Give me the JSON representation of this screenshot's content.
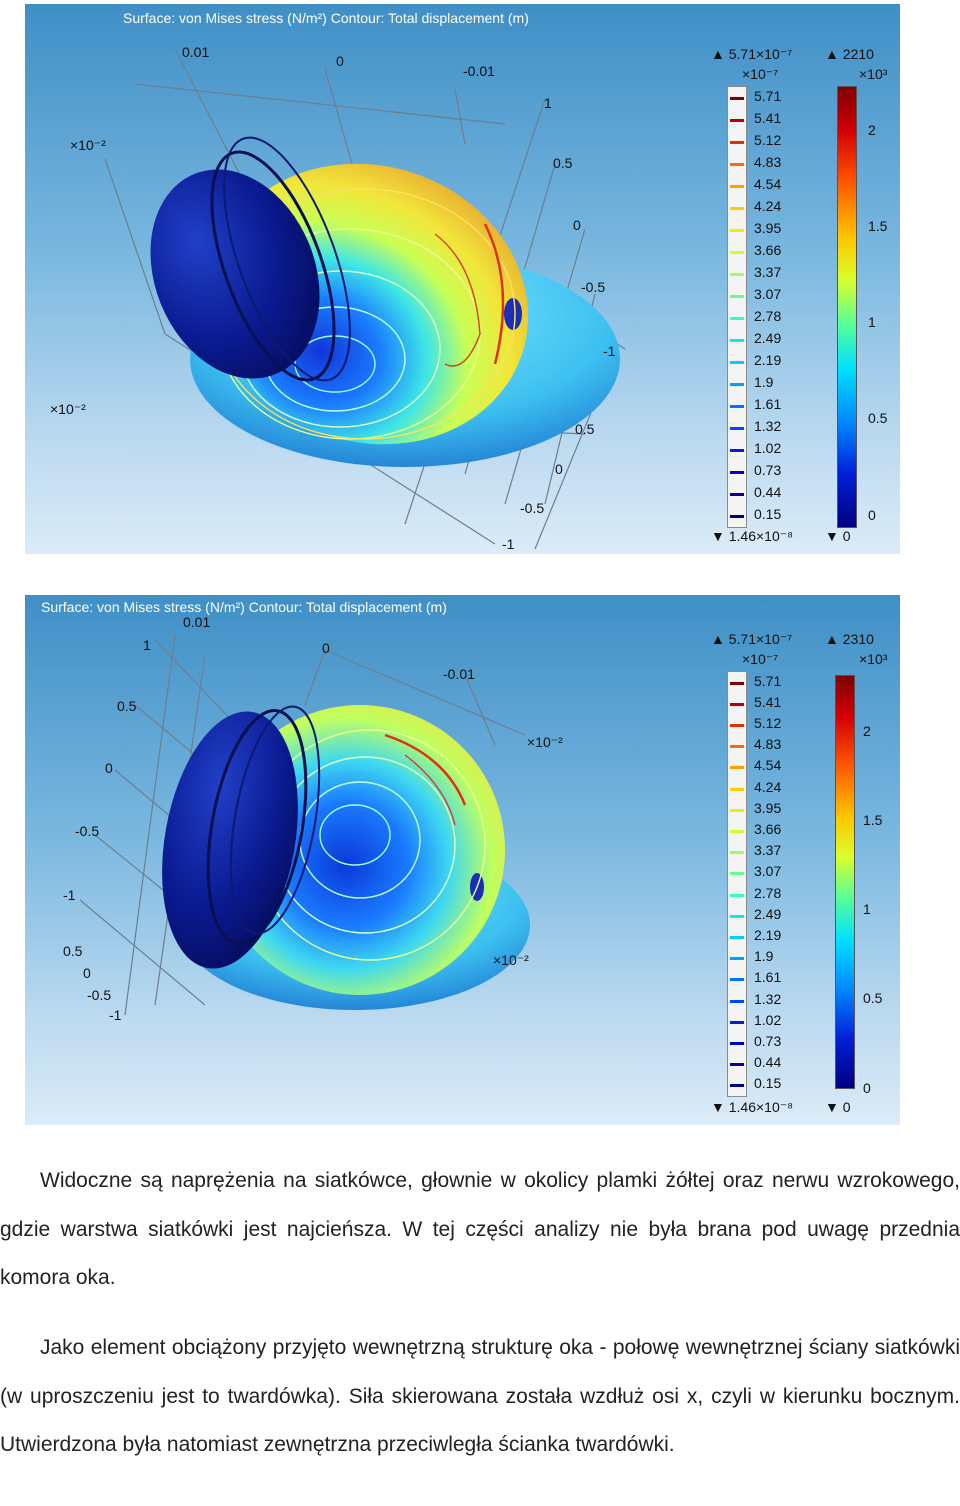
{
  "figures": [
    {
      "title": "Surface: von Mises stress (N/m²)  Contour: Total displacement (m)",
      "axis_labels": [
        "0.01",
        "0",
        "-0.01",
        "1",
        "0.5",
        "0",
        "-0.5",
        "-1",
        "0.5",
        "0",
        "-0.5",
        "-1"
      ],
      "axis_multipliers": [
        "×10⁻²",
        "×10⁻²"
      ],
      "contour_legend": {
        "max": "▲ 5.71×10⁻⁷",
        "multiplier": "×10⁻⁷",
        "levels": [
          "5.71",
          "5.41",
          "5.12",
          "4.83",
          "4.54",
          "4.24",
          "3.95",
          "3.66",
          "3.37",
          "3.07",
          "2.78",
          "2.49",
          "2.19",
          "1.9",
          "1.61",
          "1.32",
          "1.02",
          "0.73",
          "0.44",
          "0.15"
        ],
        "level_colors": [
          "#7a0000",
          "#b80000",
          "#e03000",
          "#ff6a00",
          "#ffa000",
          "#ffcc00",
          "#eeee00",
          "#ccff30",
          "#a0ff60",
          "#60ff90",
          "#30ffc0",
          "#00f0e8",
          "#00ccff",
          "#00a0ff",
          "#0070ff",
          "#0048ff",
          "#0020e0",
          "#0000c0",
          "#0000a0",
          "#000080"
        ],
        "min": "▼ 1.46×10⁻⁸"
      },
      "surface_legend": {
        "max": "▲ 2210",
        "multiplier": "×10³",
        "ticks": [
          "2",
          "1.5",
          "1",
          "0.5",
          "0"
        ],
        "min": "▼ 0"
      }
    },
    {
      "title": "Surface: von Mises stress (N/m²)  Contour: Total displacement (m)",
      "axis_labels": [
        "0.01",
        "1",
        "0",
        "-0.01",
        "0.5",
        "0",
        "-0.5",
        "-1",
        "0.5",
        "0",
        "-0.5",
        "-1"
      ],
      "axis_multipliers": [
        "×10⁻²",
        "×10⁻²"
      ],
      "contour_legend": {
        "max": "▲ 5.71×10⁻⁷",
        "multiplier": "×10⁻⁷",
        "levels": [
          "5.71",
          "5.41",
          "5.12",
          "4.83",
          "4.54",
          "4.24",
          "3.95",
          "3.66",
          "3.37",
          "3.07",
          "2.78",
          "2.49",
          "2.19",
          "1.9",
          "1.61",
          "1.32",
          "1.02",
          "0.73",
          "0.44",
          "0.15"
        ],
        "level_colors": [
          "#7a0000",
          "#b80000",
          "#e03000",
          "#ff6a00",
          "#ffa000",
          "#ffcc00",
          "#eeee00",
          "#ccff30",
          "#a0ff60",
          "#60ff90",
          "#30ffc0",
          "#00f0e8",
          "#00ccff",
          "#00a0ff",
          "#0070ff",
          "#0048ff",
          "#0020e0",
          "#0000c0",
          "#0000a0",
          "#000080"
        ],
        "min": "▼ 1.46×10⁻⁸"
      },
      "surface_legend": {
        "max": "▲ 2310",
        "multiplier": "×10³",
        "ticks": [
          "2",
          "1.5",
          "1",
          "0.5",
          "0"
        ],
        "min": "▼ 0"
      }
    }
  ],
  "paragraphs": [
    "Widoczne są naprężenia na siatkówce, głownie w okolicy plamki żółtej oraz nerwu wzrokowego, gdzie warstwa siatkówki jest najcieńsza. W tej części analizy nie była brana pod uwagę przednia komora oka.",
    "Jako element obciążony przyjęto wewnętrzną strukturę oka - połowę wewnętrznej ściany siatkówki (w uproszczeniu jest to twardówka). Siła skierowana została wzdłuż osi x, czyli w kierunku bocznym. Utwierdzona była natomiast zewnętrzna przeciwległa ścianka twardówki."
  ]
}
